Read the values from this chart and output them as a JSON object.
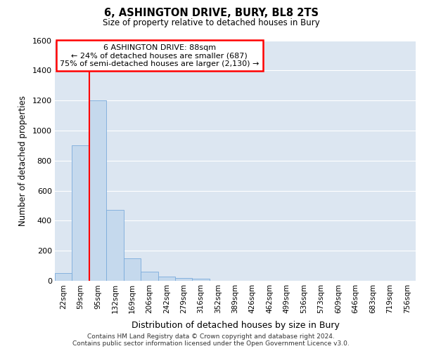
{
  "title": "6, ASHINGTON DRIVE, BURY, BL8 2TS",
  "subtitle": "Size of property relative to detached houses in Bury",
  "xlabel": "Distribution of detached houses by size in Bury",
  "ylabel": "Number of detached properties",
  "bar_color": "#c5d9ed",
  "bar_edge_color": "#7aabdb",
  "background_color": "#dce6f1",
  "grid_color": "#ffffff",
  "categories": [
    "22sqm",
    "59sqm",
    "95sqm",
    "132sqm",
    "169sqm",
    "206sqm",
    "242sqm",
    "279sqm",
    "316sqm",
    "352sqm",
    "389sqm",
    "426sqm",
    "462sqm",
    "499sqm",
    "536sqm",
    "573sqm",
    "609sqm",
    "646sqm",
    "683sqm",
    "719sqm",
    "756sqm"
  ],
  "values": [
    50,
    900,
    1200,
    470,
    150,
    60,
    30,
    20,
    15,
    0,
    0,
    0,
    0,
    0,
    0,
    0,
    0,
    0,
    0,
    0,
    0
  ],
  "ylim": [
    0,
    1600
  ],
  "yticks": [
    0,
    200,
    400,
    600,
    800,
    1000,
    1200,
    1400,
    1600
  ],
  "property_label": "6 ASHINGTON DRIVE: 88sqm",
  "annotation_line1": "← 24% of detached houses are smaller (687)",
  "annotation_line2": "75% of semi-detached houses are larger (2,130) →",
  "red_line_x": 1.5,
  "footer_line1": "Contains HM Land Registry data © Crown copyright and database right 2024.",
  "footer_line2": "Contains public sector information licensed under the Open Government Licence v3.0."
}
